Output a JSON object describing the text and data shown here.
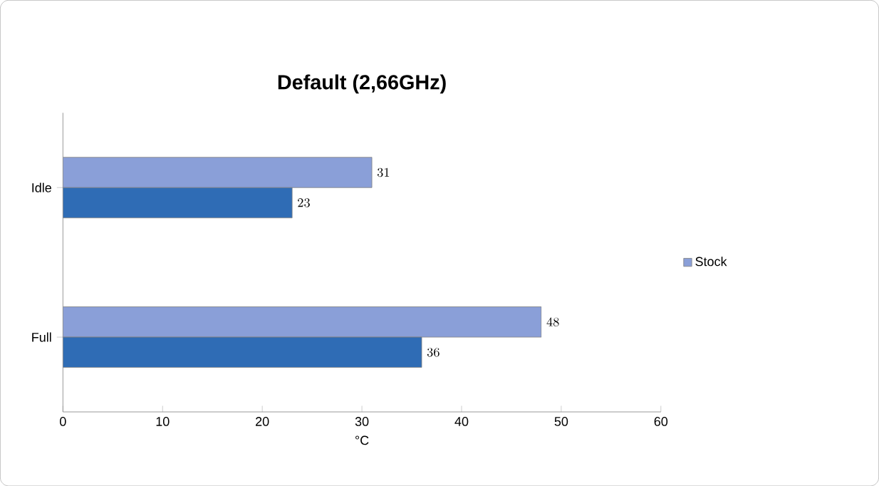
{
  "chart_data": {
    "type": "bar",
    "orientation": "horizontal",
    "title": "Default (2,66GHz)",
    "xlabel": "°C",
    "categories": [
      "Idle",
      "Full"
    ],
    "series": [
      {
        "name": "Stock",
        "color": "#8a9fd8",
        "values": [
          31,
          48
        ]
      },
      {
        "color": "#2f6cb5",
        "values": [
          23,
          36
        ]
      }
    ],
    "xlim": [
      0,
      60
    ],
    "xticks": [
      0,
      10,
      20,
      30,
      40,
      50,
      60
    ],
    "data_labels": true,
    "legend": "right"
  }
}
